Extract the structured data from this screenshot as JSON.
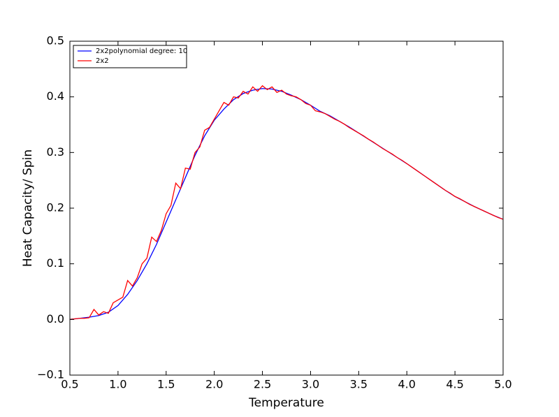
{
  "chart_data": {
    "type": "line",
    "x_label": "Temperature",
    "y_label": "Heat Capacity/ Spin",
    "xlim": [
      0.5,
      5.0
    ],
    "xticks": [
      0.5,
      {
        "value": 1,
        "label": "1.0"
      },
      1.5,
      {
        "value": 2,
        "label": "2.0"
      },
      2.5,
      {
        "value": 3,
        "label": "3.0"
      },
      3.5,
      {
        "value": 4,
        "label": "4.0"
      },
      4.5,
      {
        "value": 5,
        "label": "5.0"
      }
    ],
    "ylim": [
      -0.1,
      0.5
    ],
    "yticks": [
      {
        "value": -0.1,
        "label": "−0.1"
      },
      {
        "value": 0,
        "label": "0.0"
      },
      0.1,
      0.2,
      0.3,
      0.4,
      0.5
    ],
    "legend": "upper left",
    "series": [
      {
        "name": "2x2polynomial degree: 10",
        "color": "#0000ff",
        "x": [
          0.5,
          0.6,
          0.7,
          0.8,
          0.9,
          1.0,
          1.1,
          1.2,
          1.3,
          1.4,
          1.5,
          1.6,
          1.7,
          1.8,
          1.9,
          2.0,
          2.1,
          2.2,
          2.3,
          2.4,
          2.5,
          2.6,
          2.7,
          2.8,
          2.9,
          3.0,
          3.1,
          3.2,
          3.3,
          3.4,
          3.5,
          3.6,
          3.7,
          3.8,
          3.9,
          4.0,
          4.1,
          4.2,
          4.3,
          4.4,
          4.5,
          4.6,
          4.7,
          4.8,
          4.9,
          5.0
        ],
        "values": [
          0.0,
          0.002,
          0.004,
          0.007,
          0.013,
          0.025,
          0.045,
          0.07,
          0.1,
          0.135,
          0.175,
          0.215,
          0.255,
          0.295,
          0.33,
          0.358,
          0.378,
          0.395,
          0.406,
          0.412,
          0.415,
          0.414,
          0.41,
          0.403,
          0.395,
          0.385,
          0.374,
          0.366,
          0.356,
          0.346,
          0.335,
          0.324,
          0.313,
          0.302,
          0.291,
          0.28,
          0.268,
          0.256,
          0.244,
          0.232,
          0.221,
          0.212,
          0.203,
          0.195,
          0.187,
          0.18
        ]
      },
      {
        "name": "2x2",
        "color": "#ff0000",
        "x": [
          0.5,
          0.55,
          0.6,
          0.65,
          0.7,
          0.75,
          0.8,
          0.85,
          0.9,
          0.95,
          1.0,
          1.05,
          1.1,
          1.15,
          1.2,
          1.25,
          1.3,
          1.35,
          1.4,
          1.45,
          1.5,
          1.55,
          1.6,
          1.65,
          1.7,
          1.75,
          1.8,
          1.85,
          1.9,
          1.95,
          2.0,
          2.05,
          2.1,
          2.15,
          2.2,
          2.25,
          2.3,
          2.35,
          2.4,
          2.45,
          2.5,
          2.55,
          2.6,
          2.65,
          2.7,
          2.75,
          2.8,
          2.85,
          2.9,
          2.95,
          3.0,
          3.05,
          3.1,
          3.15,
          3.2,
          3.25,
          3.3,
          3.35,
          3.4,
          3.45,
          3.5,
          3.55,
          3.6,
          3.65,
          3.7,
          3.75,
          3.8,
          3.85,
          3.9,
          3.95,
          4.0,
          4.05,
          4.1,
          4.15,
          4.2,
          4.25,
          4.3,
          4.35,
          4.4,
          4.45,
          4.5,
          4.55,
          4.6,
          4.65,
          4.7,
          4.75,
          4.8,
          4.85,
          4.9,
          4.95,
          5.0
        ],
        "values": [
          0.0,
          0.001,
          0.002,
          0.002,
          0.003,
          0.018,
          0.008,
          0.014,
          0.011,
          0.03,
          0.035,
          0.04,
          0.07,
          0.06,
          0.075,
          0.1,
          0.11,
          0.148,
          0.14,
          0.16,
          0.19,
          0.205,
          0.245,
          0.235,
          0.272,
          0.27,
          0.3,
          0.31,
          0.34,
          0.345,
          0.36,
          0.375,
          0.39,
          0.385,
          0.4,
          0.398,
          0.41,
          0.405,
          0.418,
          0.41,
          0.42,
          0.413,
          0.418,
          0.408,
          0.412,
          0.405,
          0.402,
          0.4,
          0.395,
          0.388,
          0.385,
          0.375,
          0.373,
          0.37,
          0.365,
          0.36,
          0.356,
          0.351,
          0.345,
          0.34,
          0.335,
          0.33,
          0.324,
          0.319,
          0.313,
          0.307,
          0.302,
          0.297,
          0.291,
          0.286,
          0.28,
          0.274,
          0.268,
          0.262,
          0.256,
          0.25,
          0.244,
          0.238,
          0.232,
          0.227,
          0.221,
          0.217,
          0.212,
          0.207,
          0.203,
          0.199,
          0.195,
          0.191,
          0.187,
          0.183,
          0.18
        ]
      }
    ]
  }
}
